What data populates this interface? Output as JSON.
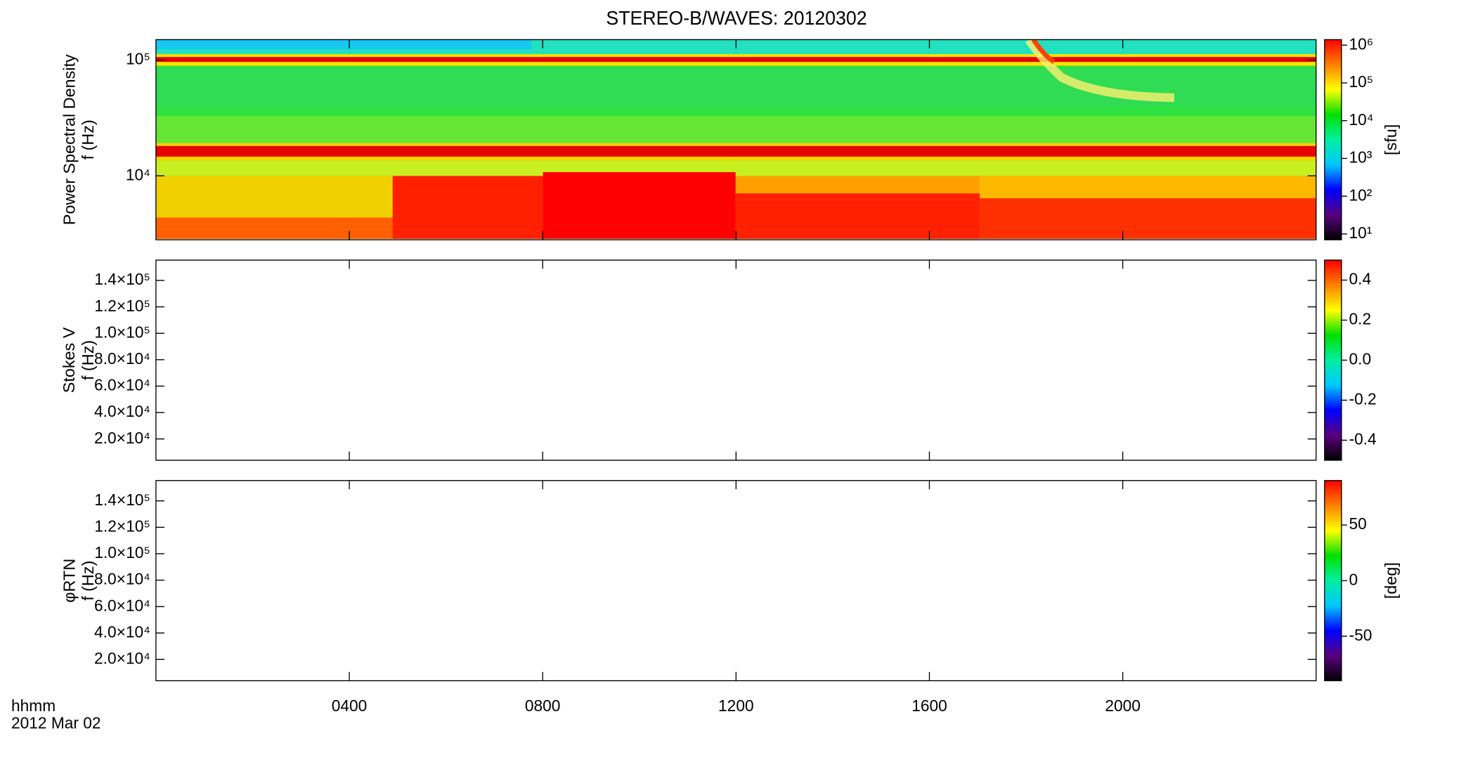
{
  "chart_data": [
    {
      "type": "spectrogram",
      "title": "STEREO-B/WAVES: 20120302",
      "ylabel": [
        "Power Spectral Density",
        "f (Hz)"
      ],
      "log_y": true,
      "ylim": [
        2800,
        150000
      ],
      "yticks": [
        {
          "value": 10000,
          "label": "10⁴"
        },
        {
          "value": 100000,
          "label": "10⁵"
        }
      ],
      "xlim": [
        0,
        24
      ],
      "xticks": [
        4,
        8,
        12,
        16,
        20
      ],
      "colorbar": {
        "log": true,
        "lim": [
          7,
          1400000
        ],
        "label": "[sfu]",
        "ticks": [
          {
            "value": 10,
            "label": "10¹"
          },
          {
            "value": 100,
            "label": "10²"
          },
          {
            "value": 1000,
            "label": "10³"
          },
          {
            "value": 10000,
            "label": "10⁴"
          },
          {
            "value": 100000,
            "label": "10⁵"
          },
          {
            "value": 1000000,
            "label": "10⁶"
          }
        ],
        "colors": [
          "#000000",
          "#5a0080",
          "#0000ff",
          "#00c8ff",
          "#00f0a0",
          "#00e000",
          "#ffff00",
          "#ff8000",
          "#ff0000"
        ]
      }
    },
    {
      "type": "spectrogram",
      "ylabel": [
        "Stokes V",
        "f (Hz)"
      ],
      "log_y": false,
      "ylim": [
        3900,
        155400
      ],
      "yticks": [
        {
          "value": 20000,
          "label": "2.0×10⁴"
        },
        {
          "value": 40000,
          "label": "4.0×10⁴"
        },
        {
          "value": 60000,
          "label": "6.0×10⁴"
        },
        {
          "value": 80000,
          "label": "8.0×10⁴"
        },
        {
          "value": 100000,
          "label": "1.0×10⁵"
        },
        {
          "value": 120000,
          "label": "1.2×10⁵"
        },
        {
          "value": 140000,
          "label": "1.4×10⁵"
        }
      ],
      "xlim": [
        0,
        24
      ],
      "xticks": [
        4,
        8,
        12,
        16,
        20
      ],
      "colorbar": {
        "log": false,
        "lim": [
          -0.5,
          0.5
        ],
        "ticks": [
          -0.4,
          -0.2,
          {
            "value": 0,
            "label": "0.0"
          },
          0.2,
          0.4
        ],
        "colors": [
          "#000000",
          "#5a0080",
          "#0000ff",
          "#00c8ff",
          "#00f0a0",
          "#00e000",
          "#ffff00",
          "#ff8000",
          "#ff0000"
        ]
      }
    },
    {
      "type": "spectrogram",
      "ylabel": [
        "φRTN",
        "f (Hz)"
      ],
      "log_y": false,
      "ylim": [
        3900,
        155400
      ],
      "yticks": [
        {
          "value": 20000,
          "label": "2.0×10⁴"
        },
        {
          "value": 40000,
          "label": "4.0×10⁴"
        },
        {
          "value": 60000,
          "label": "6.0×10⁴"
        },
        {
          "value": 80000,
          "label": "8.0×10⁴"
        },
        {
          "value": 100000,
          "label": "1.0×10⁵"
        },
        {
          "value": 120000,
          "label": "1.2×10⁵"
        },
        {
          "value": 140000,
          "label": "1.4×10⁵"
        }
      ],
      "xlim": [
        0,
        24
      ],
      "xticks": [
        {
          "value": 4,
          "label": "0400"
        },
        {
          "value": 8,
          "label": "0800"
        },
        {
          "value": 12,
          "label": "1200"
        },
        {
          "value": 16,
          "label": "1600"
        },
        {
          "value": 20,
          "label": "2000"
        }
      ],
      "xlabel": "hhmm",
      "date": "2012 Mar 02",
      "colorbar": {
        "log": false,
        "lim": [
          -90,
          90
        ],
        "label": "[deg]",
        "ticks": [
          -50,
          0,
          50
        ],
        "colors": [
          "#000000",
          "#5a0080",
          "#0000ff",
          "#00c8ff",
          "#00f0a0",
          "#00e000",
          "#ffff00",
          "#ff8000",
          "#ff0000"
        ]
      }
    }
  ]
}
